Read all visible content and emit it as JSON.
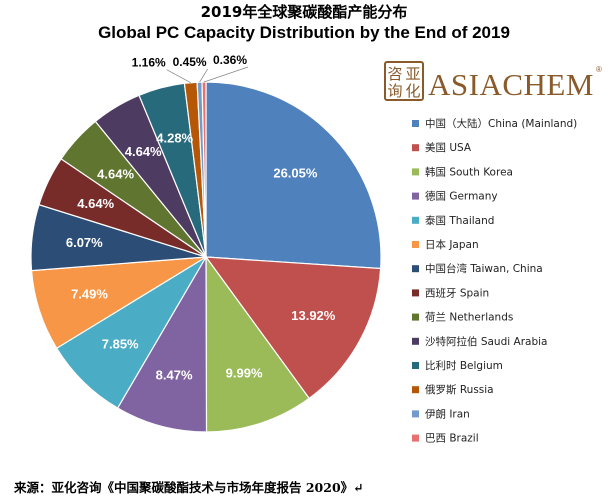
{
  "chart_data": {
    "type": "pie",
    "title": "2019年全球聚碳酸酯产能分布",
    "subtitle": "Global PC Capacity Distribution  by the End of 2019",
    "start_position": "top, clockwise",
    "legend_position": "right",
    "slices": [
      {
        "label": "中国（大陆）China (Mainland)",
        "value": 26.05,
        "value_label": "26.05%",
        "color": "#4f81bd"
      },
      {
        "label": "美国 USA",
        "value": 13.92,
        "value_label": "13.92%",
        "color": "#c0504d"
      },
      {
        "label": "韩国 South Korea",
        "value": 9.99,
        "value_label": "9.99%",
        "color": "#9bbb59"
      },
      {
        "label": "德国 Germany",
        "value": 8.47,
        "value_label": "8.47%",
        "color": "#8064a2"
      },
      {
        "label": "泰国 Thailand",
        "value": 7.85,
        "value_label": "7.85%",
        "color": "#4bacc6"
      },
      {
        "label": "日本 Japan",
        "value": 7.49,
        "value_label": "7.49%",
        "color": "#f79646"
      },
      {
        "label": "中国台湾 Taiwan, China",
        "value": 6.07,
        "value_label": "6.07%",
        "color": "#2c4d75"
      },
      {
        "label": "西班牙 Spain",
        "value": 4.64,
        "value_label": "4.64%",
        "color": "#772c2a"
      },
      {
        "label": "荷兰 Netherlands",
        "value": 4.64,
        "value_label": "4.64%",
        "color": "#5f7530"
      },
      {
        "label": "沙特阿拉伯 Saudi Arabia",
        "value": 4.64,
        "value_label": "4.64%",
        "color": "#4d3b62"
      },
      {
        "label": "比利时 Belgium",
        "value": 4.28,
        "value_label": "4.28%",
        "color": "#276a7c"
      },
      {
        "label": "俄罗斯 Russia",
        "value": 1.16,
        "value_label": "1.16%",
        "color": "#b65708"
      },
      {
        "label": "伊朗 Iran",
        "value": 0.45,
        "value_label": "0.45%",
        "color": "#729aca"
      },
      {
        "label": "巴西 Brazil",
        "value": 0.36,
        "value_label": "0.36%",
        "color": "#e6716e"
      }
    ]
  },
  "logo": {
    "wordmark": "ASIACHEM",
    "seal_text": [
      "咨",
      "亚",
      "询",
      "化"
    ],
    "reg_mark": "®"
  },
  "source": "来源：亚化咨询《中国聚碳酸酯技术与市场年度报告 2020》↵"
}
